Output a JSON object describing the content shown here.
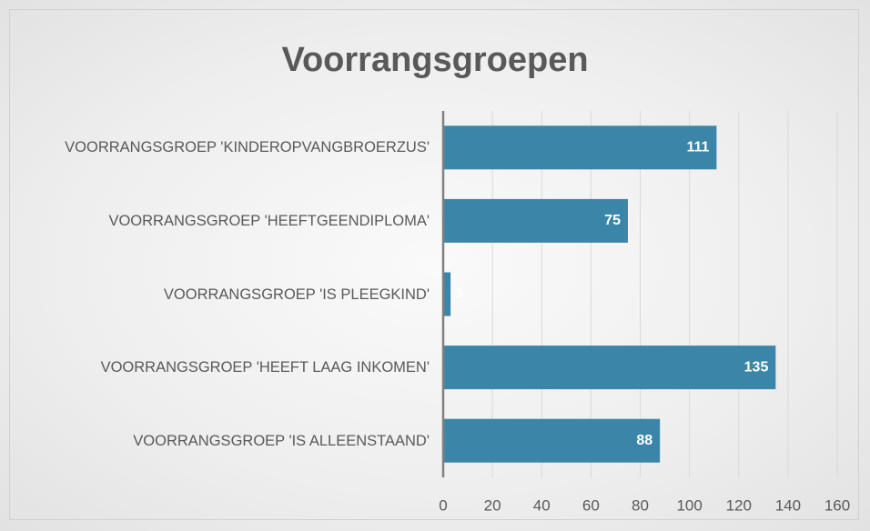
{
  "chart_data": {
    "type": "bar",
    "orientation": "horizontal",
    "title": "Voorrangsgroepen",
    "categories": [
      "VOORRANGSGROEP 'KINDEROPVANGBROERZUS'",
      "VOORRANGSGROEP 'HEEFTGEENDIPLOMA'",
      "VOORRANGSGROEP 'IS PLEEGKIND'",
      "VOORRANGSGROEP 'HEEFT LAAG INKOMEN'",
      "VOORRANGSGROEP 'IS ALLEENSTAAND'"
    ],
    "values": [
      111,
      75,
      3,
      135,
      88
    ],
    "color": "#3b86a8",
    "xlim": [
      0,
      160
    ],
    "xticks": [
      0,
      20,
      40,
      60,
      80,
      100,
      120,
      140,
      160
    ],
    "grid": true
  }
}
